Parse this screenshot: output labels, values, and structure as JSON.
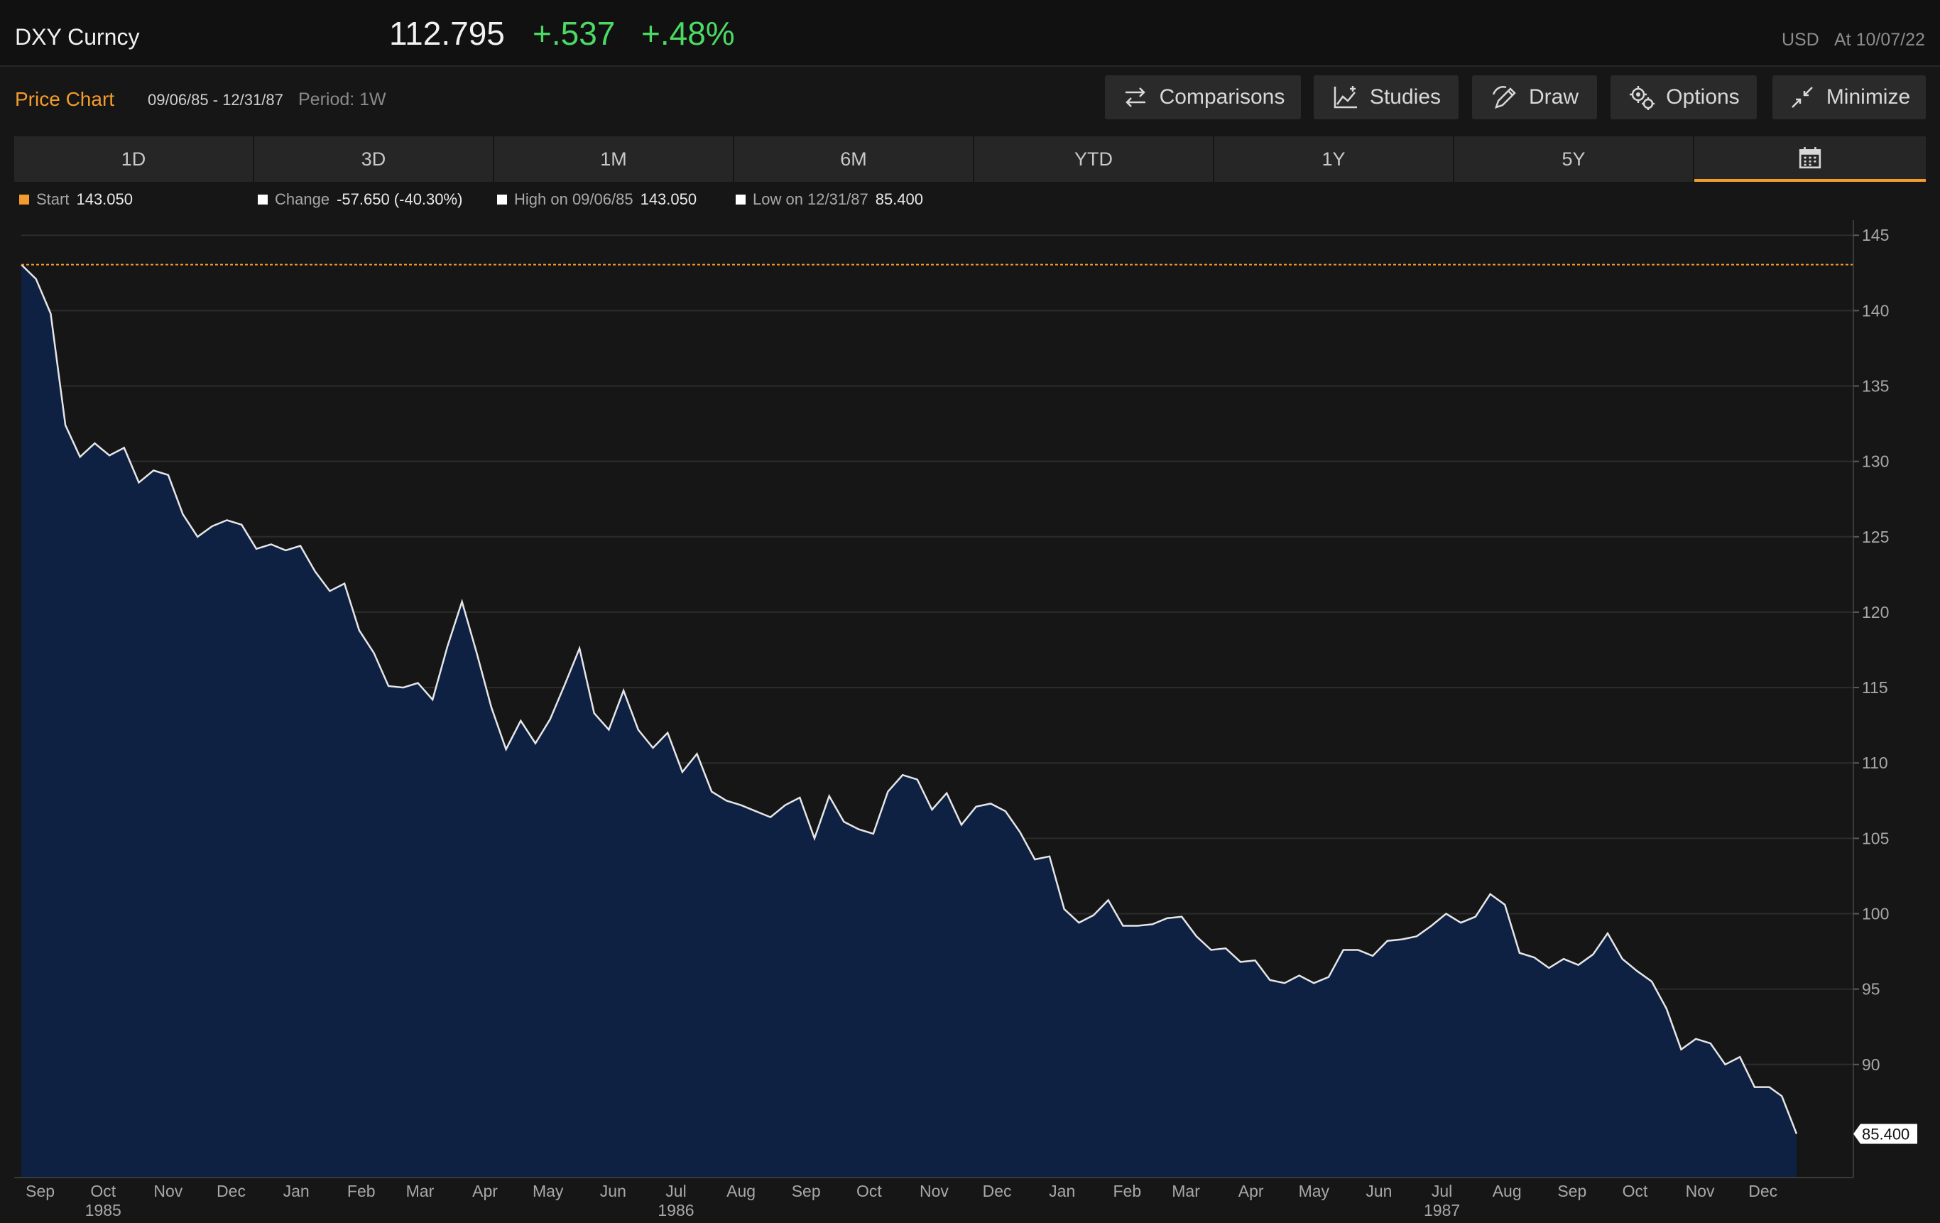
{
  "header": {
    "ticker": "DXY Curncy",
    "last": "112.795",
    "change": "+.537",
    "change_pct": "+.48%",
    "currency": "USD",
    "as_of": "At 10/07/22"
  },
  "toolbar": {
    "title": "Price Chart",
    "date_range": "09/06/85 - 12/31/87",
    "period": "Period: 1W",
    "comparisons_label": "Comparisons",
    "studies_label": "Studies",
    "draw_label": "Draw",
    "options_label": "Options",
    "minimize_label": "Minimize"
  },
  "tabs": {
    "items": [
      "1D",
      "3D",
      "1M",
      "6M",
      "YTD",
      "1Y",
      "5Y"
    ],
    "active": "calendar"
  },
  "legend": {
    "start_label": "Start",
    "start_value": "143.050",
    "change_label": "Change",
    "change_value": "-57.650 (-40.30%)",
    "high_label": "High on 09/06/85",
    "high_value": "143.050",
    "low_label": "Low on 12/31/87",
    "low_value": "85.400",
    "start_color": "#f39b2c",
    "marker_color": "#ffffff"
  },
  "colors": {
    "line": "#e6e6e6",
    "area": "#0e2143",
    "reference": "#f39b2c",
    "up": "#4cd964"
  },
  "chart_data": {
    "type": "area",
    "title": "",
    "xlabel": "",
    "ylabel": "",
    "x_start": "09/06/85",
    "x_end": "12/31/87",
    "ylim": [
      82.5,
      146
    ],
    "y_ticks": [
      145,
      140,
      135,
      130,
      125,
      120,
      115,
      110,
      105,
      100,
      95,
      90
    ],
    "reference_line": 143.05,
    "last_value_label": "85.400",
    "month_ticks": [
      {
        "label": "Sep",
        "date": "1985-09-15"
      },
      {
        "label": "Oct",
        "date": "1985-10-15"
      },
      {
        "label": "Nov",
        "date": "1985-11-15"
      },
      {
        "label": "Dec",
        "date": "1985-12-15"
      },
      {
        "label": "Jan",
        "date": "1986-01-15"
      },
      {
        "label": "Feb",
        "date": "1986-02-15"
      },
      {
        "label": "Mar",
        "date": "1986-03-15"
      },
      {
        "label": "Apr",
        "date": "1986-04-15"
      },
      {
        "label": "May",
        "date": "1986-05-15"
      },
      {
        "label": "Jun",
        "date": "1986-06-15"
      },
      {
        "label": "Jul",
        "date": "1986-07-15"
      },
      {
        "label": "Aug",
        "date": "1986-08-15"
      },
      {
        "label": "Sep",
        "date": "1986-09-15"
      },
      {
        "label": "Oct",
        "date": "1986-10-15"
      },
      {
        "label": "Nov",
        "date": "1986-11-15"
      },
      {
        "label": "Dec",
        "date": "1986-12-15"
      },
      {
        "label": "Jan",
        "date": "1987-01-15"
      },
      {
        "label": "Feb",
        "date": "1987-02-15"
      },
      {
        "label": "Mar",
        "date": "1987-03-15"
      },
      {
        "label": "Apr",
        "date": "1987-04-15"
      },
      {
        "label": "May",
        "date": "1987-05-15"
      },
      {
        "label": "Jun",
        "date": "1987-06-15"
      },
      {
        "label": "Jul",
        "date": "1987-07-15"
      },
      {
        "label": "Aug",
        "date": "1987-08-15"
      },
      {
        "label": "Sep",
        "date": "1987-09-15"
      },
      {
        "label": "Oct",
        "date": "1987-10-15"
      },
      {
        "label": "Nov",
        "date": "1987-11-15"
      },
      {
        "label": "Dec",
        "date": "1987-12-15"
      }
    ],
    "year_ticks": [
      {
        "label": "1985",
        "date": "1985-10-15"
      },
      {
        "label": "1986",
        "date": "1986-07-15"
      },
      {
        "label": "1987",
        "date": "1987-07-15"
      }
    ],
    "series": [
      {
        "points": [
          [
            "1985-09-06",
            143.05
          ],
          [
            "1985-09-13",
            142.1
          ],
          [
            "1985-09-20",
            139.8
          ],
          [
            "1985-09-27",
            132.4
          ],
          [
            "1985-10-04",
            130.3
          ],
          [
            "1985-10-11",
            131.2
          ],
          [
            "1985-10-18",
            130.4
          ],
          [
            "1985-10-25",
            130.9
          ],
          [
            "1985-11-01",
            128.6
          ],
          [
            "1985-11-08",
            129.4
          ],
          [
            "1985-11-15",
            129.1
          ],
          [
            "1985-11-22",
            126.5
          ],
          [
            "1985-11-29",
            125.0
          ],
          [
            "1985-12-06",
            125.7
          ],
          [
            "1985-12-13",
            126.1
          ],
          [
            "1985-12-20",
            125.8
          ],
          [
            "1985-12-27",
            124.2
          ],
          [
            "1986-01-03",
            124.5
          ],
          [
            "1986-01-10",
            124.1
          ],
          [
            "1986-01-17",
            124.4
          ],
          [
            "1986-01-24",
            122.7
          ],
          [
            "1986-01-31",
            121.4
          ],
          [
            "1986-02-07",
            121.9
          ],
          [
            "1986-02-14",
            118.8
          ],
          [
            "1986-02-21",
            117.3
          ],
          [
            "1986-02-28",
            115.1
          ],
          [
            "1986-03-07",
            115.0
          ],
          [
            "1986-03-14",
            115.3
          ],
          [
            "1986-03-21",
            114.2
          ],
          [
            "1986-03-28",
            117.7
          ],
          [
            "1986-04-04",
            120.7
          ],
          [
            "1986-04-11",
            117.3
          ],
          [
            "1986-04-18",
            113.7
          ],
          [
            "1986-04-25",
            110.9
          ],
          [
            "1986-05-02",
            112.8
          ],
          [
            "1986-05-09",
            111.3
          ],
          [
            "1986-05-16",
            112.9
          ],
          [
            "1986-05-23",
            115.2
          ],
          [
            "1986-05-30",
            117.6
          ],
          [
            "1986-06-06",
            113.3
          ],
          [
            "1986-06-13",
            112.2
          ],
          [
            "1986-06-20",
            114.8
          ],
          [
            "1986-06-27",
            112.2
          ],
          [
            "1986-07-04",
            111.0
          ],
          [
            "1986-07-11",
            112.0
          ],
          [
            "1986-07-18",
            109.4
          ],
          [
            "1986-07-25",
            110.6
          ],
          [
            "1986-08-01",
            108.1
          ],
          [
            "1986-08-08",
            107.5
          ],
          [
            "1986-08-15",
            107.2
          ],
          [
            "1986-08-22",
            106.8
          ],
          [
            "1986-08-29",
            106.4
          ],
          [
            "1986-09-05",
            107.2
          ],
          [
            "1986-09-12",
            107.7
          ],
          [
            "1986-09-19",
            105.0
          ],
          [
            "1986-09-26",
            107.8
          ],
          [
            "1986-10-03",
            106.1
          ],
          [
            "1986-10-10",
            105.6
          ],
          [
            "1986-10-17",
            105.3
          ],
          [
            "1986-10-24",
            108.1
          ],
          [
            "1986-10-31",
            109.2
          ],
          [
            "1986-11-07",
            108.9
          ],
          [
            "1986-11-14",
            106.9
          ],
          [
            "1986-11-21",
            108.0
          ],
          [
            "1986-11-28",
            105.9
          ],
          [
            "1986-12-05",
            107.1
          ],
          [
            "1986-12-12",
            107.3
          ],
          [
            "1986-12-19",
            106.8
          ],
          [
            "1986-12-26",
            105.4
          ],
          [
            "1987-01-02",
            103.6
          ],
          [
            "1987-01-09",
            103.8
          ],
          [
            "1987-01-16",
            100.3
          ],
          [
            "1987-01-23",
            99.4
          ],
          [
            "1987-01-30",
            99.9
          ],
          [
            "1987-02-06",
            100.9
          ],
          [
            "1987-02-13",
            99.2
          ],
          [
            "1987-02-20",
            99.2
          ],
          [
            "1987-02-27",
            99.3
          ],
          [
            "1987-03-06",
            99.7
          ],
          [
            "1987-03-13",
            99.8
          ],
          [
            "1987-03-20",
            98.5
          ],
          [
            "1987-03-27",
            97.6
          ],
          [
            "1987-04-03",
            97.7
          ],
          [
            "1987-04-10",
            96.8
          ],
          [
            "1987-04-17",
            96.9
          ],
          [
            "1987-04-24",
            95.6
          ],
          [
            "1987-05-01",
            95.4
          ],
          [
            "1987-05-08",
            95.9
          ],
          [
            "1987-05-15",
            95.4
          ],
          [
            "1987-05-22",
            95.8
          ],
          [
            "1987-05-29",
            97.6
          ],
          [
            "1987-06-05",
            97.6
          ],
          [
            "1987-06-12",
            97.2
          ],
          [
            "1987-06-19",
            98.2
          ],
          [
            "1987-06-26",
            98.3
          ],
          [
            "1987-07-03",
            98.5
          ],
          [
            "1987-07-10",
            99.2
          ],
          [
            "1987-07-17",
            100.0
          ],
          [
            "1987-07-24",
            99.4
          ],
          [
            "1987-07-31",
            99.8
          ],
          [
            "1987-08-07",
            101.3
          ],
          [
            "1987-08-14",
            100.6
          ],
          [
            "1987-08-21",
            97.4
          ],
          [
            "1987-08-28",
            97.1
          ],
          [
            "1987-09-04",
            96.4
          ],
          [
            "1987-09-11",
            97.0
          ],
          [
            "1987-09-18",
            96.6
          ],
          [
            "1987-09-25",
            97.3
          ],
          [
            "1987-10-02",
            98.7
          ],
          [
            "1987-10-09",
            97.0
          ],
          [
            "1987-10-16",
            96.2
          ],
          [
            "1987-10-23",
            95.5
          ],
          [
            "1987-10-30",
            93.7
          ],
          [
            "1987-11-06",
            91.0
          ],
          [
            "1987-11-13",
            91.7
          ],
          [
            "1987-11-20",
            91.4
          ],
          [
            "1987-11-27",
            90.0
          ],
          [
            "1987-12-04",
            90.5
          ],
          [
            "1987-12-11",
            88.5
          ],
          [
            "1987-12-18",
            88.5
          ],
          [
            "1987-12-24",
            87.9
          ],
          [
            "1987-12-31",
            85.4
          ]
        ]
      }
    ]
  }
}
